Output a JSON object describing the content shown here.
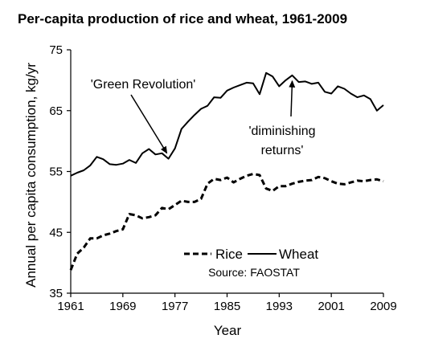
{
  "chart_data": {
    "type": "line",
    "title": "Per-capita production of rice and wheat, 1961-2009",
    "xlabel": "Year",
    "ylabel": "Annual per capita consumption, kg/yr",
    "xlim": [
      1961,
      2009
    ],
    "ylim": [
      35,
      75
    ],
    "x_ticks": [
      "1961",
      "1969",
      "1977",
      "1985",
      "1993",
      "2001",
      "2009"
    ],
    "y_ticks": [
      "35",
      "45",
      "55",
      "65",
      "75"
    ],
    "grid": false,
    "legend_position": "bottom-center",
    "x": [
      1961,
      1962,
      1963,
      1964,
      1965,
      1966,
      1967,
      1968,
      1969,
      1970,
      1971,
      1972,
      1973,
      1974,
      1975,
      1976,
      1977,
      1978,
      1979,
      1980,
      1981,
      1982,
      1983,
      1984,
      1985,
      1986,
      1987,
      1988,
      1989,
      1990,
      1991,
      1992,
      1993,
      1994,
      1995,
      1996,
      1997,
      1998,
      1999,
      2000,
      2001,
      2002,
      2003,
      2004,
      2005,
      2006,
      2007,
      2008,
      2009
    ],
    "series": [
      {
        "name": "Rice",
        "line_style": "dashed",
        "values": [
          38.8,
          41.5,
          42.5,
          44.0,
          44.0,
          44.5,
          44.8,
          45.2,
          45.5,
          48.0,
          47.8,
          47.3,
          47.5,
          47.8,
          49.0,
          48.8,
          49.5,
          50.2,
          50.0,
          50.0,
          50.5,
          53.0,
          53.8,
          53.6,
          54.0,
          53.2,
          53.8,
          54.3,
          54.6,
          54.4,
          52.2,
          51.8,
          52.6,
          52.6,
          53.0,
          53.3,
          53.5,
          53.6,
          54.1,
          53.9,
          53.4,
          53.0,
          52.9,
          53.2,
          53.5,
          53.4,
          53.6,
          53.7,
          53.4
        ]
      },
      {
        "name": "Wheat",
        "line_style": "solid",
        "values": [
          54.3,
          54.8,
          55.2,
          56.0,
          57.4,
          57.0,
          56.2,
          56.1,
          56.3,
          56.9,
          56.4,
          58.0,
          58.7,
          57.8,
          58.0,
          57.1,
          58.8,
          62.0,
          63.2,
          64.3,
          65.3,
          65.8,
          67.2,
          67.1,
          68.3,
          68.8,
          69.2,
          69.6,
          69.5,
          67.7,
          71.2,
          70.6,
          69.0,
          70.0,
          70.8,
          69.7,
          69.8,
          69.4,
          69.6,
          68.1,
          67.8,
          69.0,
          68.6,
          67.8,
          67.2,
          67.5,
          66.9,
          65.0,
          65.9
        ]
      }
    ],
    "annotations": [
      {
        "text": "'Green Revolution'",
        "arrow_to_year": 1976
      },
      {
        "text_lines": [
          "'diminishing",
          "returns'"
        ],
        "arrow_to_year": 1995
      }
    ],
    "source": "Source: FAOSTAT"
  }
}
